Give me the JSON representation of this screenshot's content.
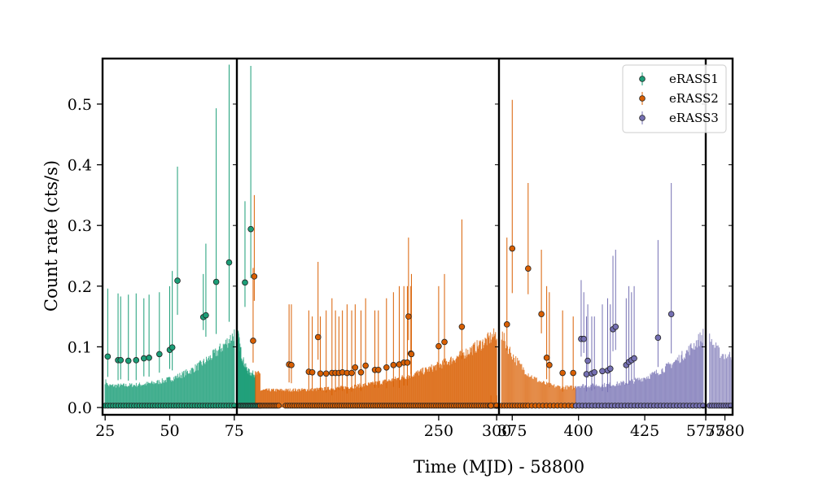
{
  "chart_data": {
    "type": "scatter",
    "title": "",
    "xlabel": "Time (MJD) - 58800",
    "ylabel": "Count rate (cts/s)",
    "ylim": [
      -0.012,
      0.575
    ],
    "yticks": [
      0.0,
      0.1,
      0.2,
      0.3,
      0.4,
      0.5
    ],
    "ytick_labels": [
      "0.0",
      "0.1",
      "0.2",
      "0.3",
      "0.4",
      "0.5"
    ],
    "legend_position": "top-right",
    "grid": false,
    "broken_axis": true,
    "panels": [
      {
        "xlim": [
          24,
          76
        ],
        "xticks": [
          25,
          50,
          75
        ],
        "xtick_labels": [
          "25",
          "50",
          "75"
        ],
        "points": [
          {
            "s": "eRASS1",
            "x": 26,
            "y": 0.084,
            "u": 0.196
          },
          {
            "s": "eRASS1",
            "x": 30,
            "y": 0.078,
            "u": 0.188
          },
          {
            "s": "eRASS1",
            "x": 31,
            "y": 0.078,
            "u": 0.183
          },
          {
            "s": "eRASS1",
            "x": 34,
            "y": 0.077,
            "u": 0.186
          },
          {
            "s": "eRASS1",
            "x": 37,
            "y": 0.078,
            "u": 0.188
          },
          {
            "s": "eRASS1",
            "x": 40,
            "y": 0.081,
            "u": 0.18
          },
          {
            "s": "eRASS1",
            "x": 42,
            "y": 0.082,
            "u": 0.186
          },
          {
            "s": "eRASS1",
            "x": 46,
            "y": 0.088,
            "u": 0.19
          },
          {
            "s": "eRASS1",
            "x": 50,
            "y": 0.095,
            "u": 0.2
          },
          {
            "s": "eRASS1",
            "x": 51,
            "y": 0.099,
            "u": 0.225
          },
          {
            "s": "eRASS1",
            "x": 53,
            "y": 0.209,
            "u": 0.397
          },
          {
            "s": "eRASS1",
            "x": 63,
            "y": 0.149,
            "u": 0.22
          },
          {
            "s": "eRASS1",
            "x": 64,
            "y": 0.152,
            "u": 0.27
          },
          {
            "s": "eRASS1",
            "x": 68,
            "y": 0.207,
            "u": 0.493
          },
          {
            "s": "eRASS1",
            "x": 73,
            "y": 0.239,
            "u": 0.565
          }
        ],
        "zeros": [
          {
            "s": "eRASS1",
            "from": 25,
            "to": 75,
            "n": 50
          }
        ],
        "bands": [
          {
            "s": "eRASS1",
            "from": 25,
            "to": 75,
            "base": 0.045,
            "peak": 0.128,
            "min": 0.038,
            "n": 200
          }
        ]
      },
      {
        "xlim": [
          76,
          302
        ],
        "xticks": [
          250,
          300
        ],
        "xtick_labels": [
          "250",
          "300"
        ],
        "points": [
          {
            "s": "eRASS1",
            "x": 83,
            "y": 0.206,
            "u": 0.34
          },
          {
            "s": "eRASS1",
            "x": 88,
            "y": 0.294,
            "u": 0.563
          },
          {
            "s": "eRASS2",
            "x": 90,
            "y": 0.11,
            "u": 0.23
          },
          {
            "s": "eRASS2",
            "x": 91,
            "y": 0.216,
            "u": 0.35
          },
          {
            "s": "eRASS2",
            "x": 121,
            "y": 0.071,
            "u": 0.17
          },
          {
            "s": "eRASS2",
            "x": 123,
            "y": 0.07,
            "u": 0.17
          },
          {
            "s": "eRASS2",
            "x": 138,
            "y": 0.059,
            "u": 0.16
          },
          {
            "s": "eRASS2",
            "x": 141,
            "y": 0.058,
            "u": 0.15
          },
          {
            "s": "eRASS2",
            "x": 146,
            "y": 0.116,
            "u": 0.24
          },
          {
            "s": "eRASS2",
            "x": 148,
            "y": 0.056,
            "u": 0.15
          },
          {
            "s": "eRASS2",
            "x": 153,
            "y": 0.056,
            "u": 0.16
          },
          {
            "s": "eRASS2",
            "x": 158,
            "y": 0.057,
            "u": 0.18
          },
          {
            "s": "eRASS2",
            "x": 161,
            "y": 0.057,
            "u": 0.16
          },
          {
            "s": "eRASS2",
            "x": 164,
            "y": 0.057,
            "u": 0.15
          },
          {
            "s": "eRASS2",
            "x": 167,
            "y": 0.058,
            "u": 0.16
          },
          {
            "s": "eRASS2",
            "x": 171,
            "y": 0.057,
            "u": 0.17
          },
          {
            "s": "eRASS2",
            "x": 175,
            "y": 0.057,
            "u": 0.16
          },
          {
            "s": "eRASS2",
            "x": 178,
            "y": 0.066,
            "u": 0.17
          },
          {
            "s": "eRASS2",
            "x": 183,
            "y": 0.058,
            "u": 0.16
          },
          {
            "s": "eRASS2",
            "x": 187,
            "y": 0.069,
            "u": 0.18
          },
          {
            "s": "eRASS2",
            "x": 195,
            "y": 0.062,
            "u": 0.16
          },
          {
            "s": "eRASS2",
            "x": 198,
            "y": 0.062,
            "u": 0.16
          },
          {
            "s": "eRASS2",
            "x": 205,
            "y": 0.066,
            "u": 0.18
          },
          {
            "s": "eRASS2",
            "x": 211,
            "y": 0.07,
            "u": 0.19
          },
          {
            "s": "eRASS2",
            "x": 216,
            "y": 0.071,
            "u": 0.2
          },
          {
            "s": "eRASS2",
            "x": 220,
            "y": 0.074,
            "u": 0.2
          },
          {
            "s": "eRASS2",
            "x": 223,
            "y": 0.074,
            "u": 0.2
          },
          {
            "s": "eRASS2",
            "x": 224,
            "y": 0.15,
            "u": 0.28
          },
          {
            "s": "eRASS2",
            "x": 226,
            "y": 0.089,
            "u": 0.2
          },
          {
            "s": "eRASS2",
            "x": 226.5,
            "y": 0.088,
            "u": 0.22
          },
          {
            "s": "eRASS2",
            "x": 250,
            "y": 0.101,
            "u": 0.2
          },
          {
            "s": "eRASS2",
            "x": 255,
            "y": 0.108,
            "u": 0.22
          },
          {
            "s": "eRASS2",
            "x": 270,
            "y": 0.133,
            "u": 0.31
          },
          {
            "s": "eRASS2",
            "x": 295,
            "y": 0.003,
            "u": 0.02
          },
          {
            "s": "eRASS2",
            "x": 300,
            "y": 0.003,
            "u": 0.02
          }
        ],
        "zeros": [
          {
            "s": "eRASS1",
            "from": 78,
            "to": 96,
            "n": 18
          },
          {
            "s": "eRASS2",
            "from": 96,
            "to": 112,
            "n": 12
          },
          {
            "s": "eRASS2",
            "from": 118,
            "to": 300,
            "n": 95
          }
        ],
        "bands": [
          {
            "s": "eRASS1",
            "from": 77,
            "to": 92,
            "base": 0.125,
            "peak": 0.125,
            "min": 0.058,
            "n": 55
          },
          {
            "s": "eRASS2",
            "from": 92,
            "to": 300,
            "base": 0.058,
            "peak": 0.128,
            "min": 0.03,
            "n": 420
          }
        ]
      },
      {
        "xlim": [
          370,
          448
        ],
        "xticks": [
          375,
          400,
          425
        ],
        "xtick_labels": [
          "375",
          "400",
          "425"
        ],
        "points": [
          {
            "s": "eRASS2",
            "x": 373,
            "y": 0.137,
            "u": 0.28
          },
          {
            "s": "eRASS2",
            "x": 375,
            "y": 0.262,
            "u": 0.507
          },
          {
            "s": "eRASS2",
            "x": 381,
            "y": 0.229,
            "u": 0.37
          },
          {
            "s": "eRASS2",
            "x": 386,
            "y": 0.154,
            "u": 0.26
          },
          {
            "s": "eRASS2",
            "x": 388,
            "y": 0.082,
            "u": 0.2
          },
          {
            "s": "eRASS2",
            "x": 389,
            "y": 0.07,
            "u": 0.19
          },
          {
            "s": "eRASS2",
            "x": 394,
            "y": 0.057,
            "u": 0.16
          },
          {
            "s": "eRASS2",
            "x": 398,
            "y": 0.057,
            "u": 0.15
          },
          {
            "s": "eRASS3",
            "x": 401,
            "y": 0.113,
            "u": 0.21
          },
          {
            "s": "eRASS3",
            "x": 402,
            "y": 0.113,
            "u": 0.19
          },
          {
            "s": "eRASS3",
            "x": 403,
            "y": 0.055,
            "u": 0.15
          },
          {
            "s": "eRASS3",
            "x": 403.5,
            "y": 0.077,
            "u": 0.17
          },
          {
            "s": "eRASS3",
            "x": 405,
            "y": 0.056,
            "u": 0.15
          },
          {
            "s": "eRASS3",
            "x": 406,
            "y": 0.058,
            "u": 0.15
          },
          {
            "s": "eRASS3",
            "x": 409,
            "y": 0.06,
            "u": 0.17
          },
          {
            "s": "eRASS3",
            "x": 411,
            "y": 0.061,
            "u": 0.18
          },
          {
            "s": "eRASS3",
            "x": 412,
            "y": 0.064,
            "u": 0.17
          },
          {
            "s": "eRASS3",
            "x": 413,
            "y": 0.129,
            "u": 0.25
          },
          {
            "s": "eRASS3",
            "x": 414,
            "y": 0.133,
            "u": 0.26
          },
          {
            "s": "eRASS3",
            "x": 418,
            "y": 0.07,
            "u": 0.18
          },
          {
            "s": "eRASS3",
            "x": 419,
            "y": 0.075,
            "u": 0.2
          },
          {
            "s": "eRASS3",
            "x": 420,
            "y": 0.078,
            "u": 0.19
          },
          {
            "s": "eRASS3",
            "x": 421,
            "y": 0.081,
            "u": 0.2
          },
          {
            "s": "eRASS3",
            "x": 430,
            "y": 0.115,
            "u": 0.276
          },
          {
            "s": "eRASS3",
            "x": 435,
            "y": 0.154,
            "u": 0.37
          }
        ],
        "zeros": [
          {
            "s": "eRASS2",
            "from": 371,
            "to": 380,
            "n": 10
          },
          {
            "s": "eRASS2",
            "from": 381,
            "to": 399,
            "n": 14
          },
          {
            "s": "eRASS3",
            "from": 399,
            "to": 447,
            "n": 40
          }
        ],
        "bands": [
          {
            "s": "eRASS2",
            "from": 371,
            "to": 399,
            "base": 0.126,
            "peak": 0.126,
            "min": 0.035,
            "n": 90
          },
          {
            "s": "eRASS3",
            "from": 399,
            "to": 447,
            "base": 0.038,
            "peak": 0.126,
            "min": 0.038,
            "n": 170
          }
        ]
      },
      {
        "xlim": [
          5775,
          5782
        ],
        "xticks": [
          5775,
          5780
        ],
        "xtick_labels": [
          "5775",
          "5780"
        ],
        "points": [],
        "zeros": [
          {
            "s": "eRASS3",
            "from": 5776,
            "to": 5781.5,
            "n": 10
          }
        ],
        "bands": [
          {
            "s": "eRASS3",
            "from": 5776,
            "to": 5781.8,
            "base": 0.125,
            "peak": 0.125,
            "min": 0.09,
            "n": 22
          }
        ]
      }
    ],
    "series": [
      {
        "name": "eRASS1",
        "color": "#1b9e77"
      },
      {
        "name": "eRASS2",
        "color": "#d95f02"
      },
      {
        "name": "eRASS3",
        "color": "#7570b3"
      }
    ]
  }
}
